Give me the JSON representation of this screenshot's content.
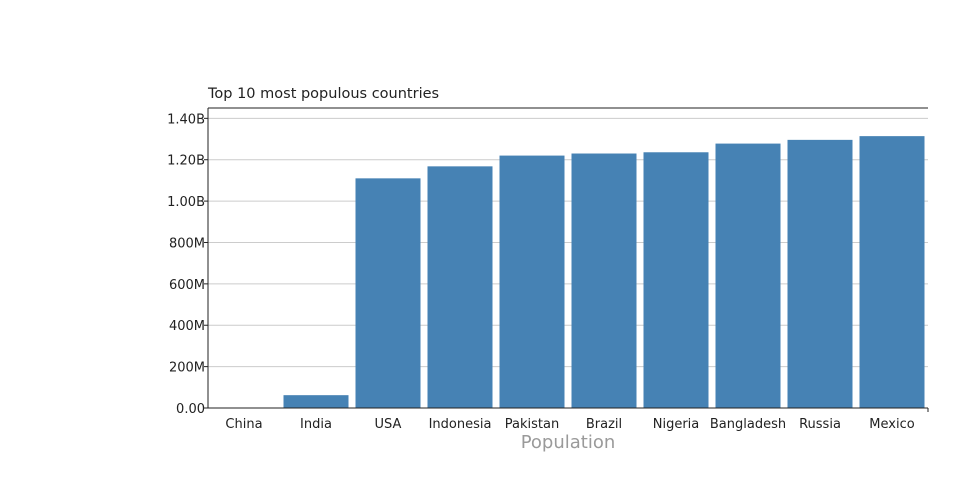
{
  "chart_data": {
    "type": "bar",
    "title": "Top 10 most populous countries",
    "xlabel": "Population",
    "ylabel": "",
    "categories": [
      "China",
      "India",
      "USA",
      "Indonesia",
      "Pakistan",
      "Brazil",
      "Nigeria",
      "Bangladesh",
      "Russia",
      "Mexico"
    ],
    "values": [
      0,
      62000000,
      1110000000,
      1168000000,
      1220000000,
      1230000000,
      1236000000,
      1278000000,
      1296000000,
      1314000000
    ],
    "ylim": [
      0,
      1450000000
    ],
    "yticks": [
      0,
      200000000,
      400000000,
      600000000,
      800000000,
      1000000000,
      1200000000,
      1400000000
    ],
    "ytick_labels": [
      "0.00",
      "200M",
      "400M",
      "600M",
      "800M",
      "1.00B",
      "1.20B",
      "1.40B"
    ],
    "grid": true,
    "bar_color": "#4682b4",
    "grid_color": "#cccccc",
    "axis_color": "#222222"
  }
}
